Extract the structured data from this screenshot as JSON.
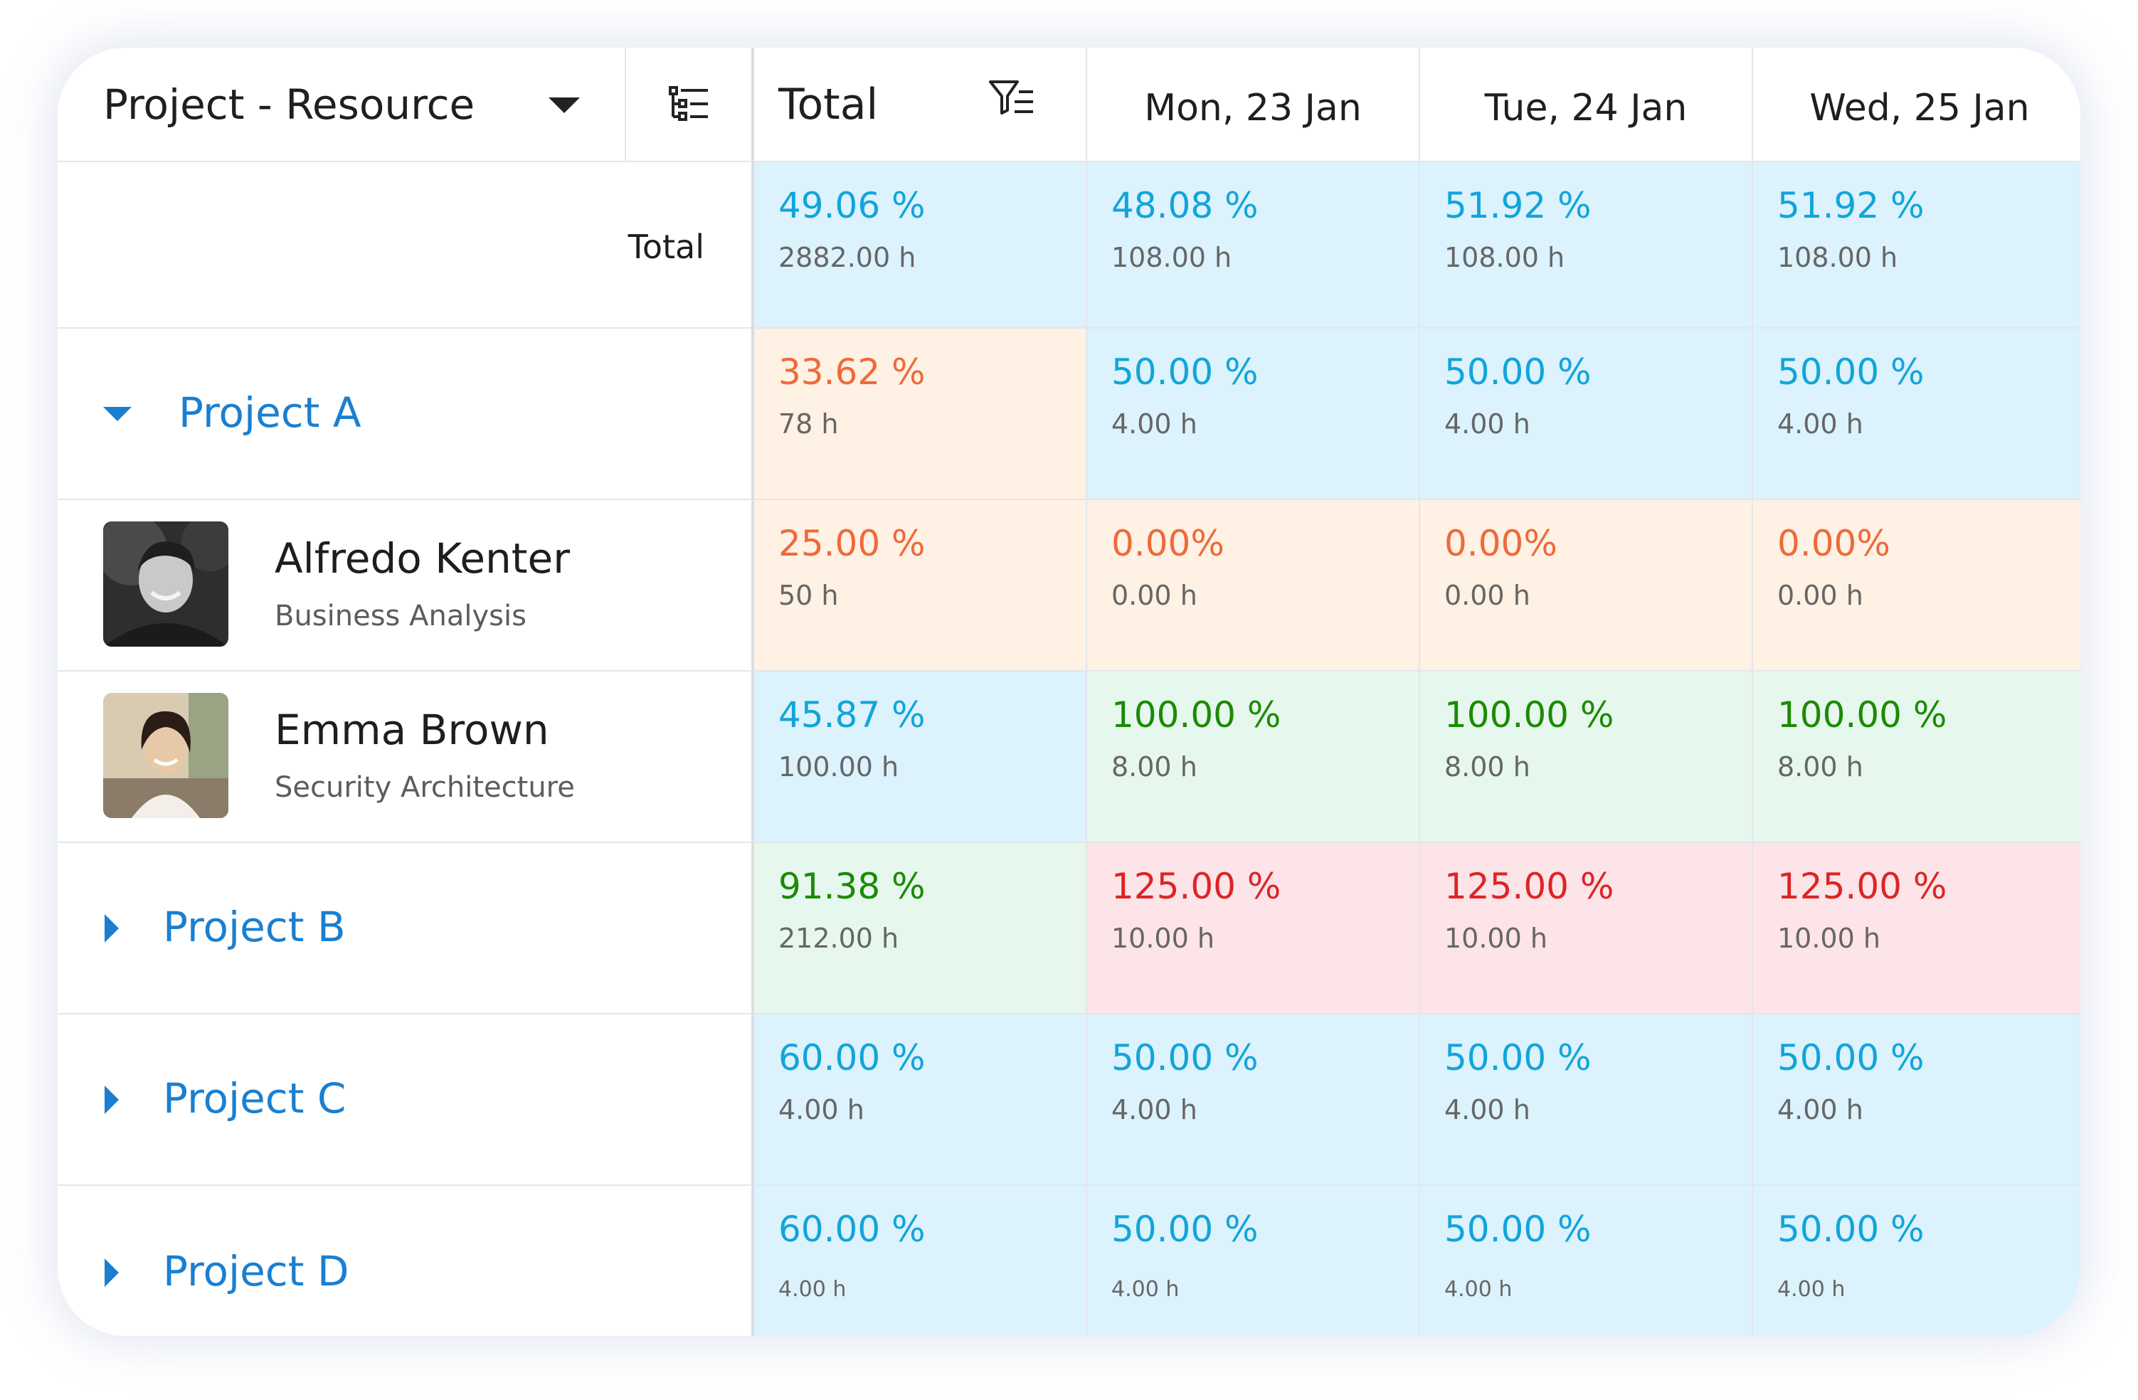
{
  "header": {
    "dropdown_label": "Project - Resource",
    "total_label": "Total",
    "days": [
      "Mon, 23 Jan",
      "Tue, 24 Jan",
      "Wed, 25 Jan"
    ]
  },
  "colors": {
    "blue_text": "#11a5d9",
    "orange_text": "#ee6a3b",
    "green_text": "#1c8a06",
    "red_text": "#dc2525",
    "project_link": "#1a7fd0",
    "blue_bg": "#dcf2fd",
    "orange_bg": "#fff1e4",
    "green_bg": "#e6f8ee",
    "red_bg": "#fde4e8"
  },
  "rows": [
    {
      "kind": "total",
      "label": "Total",
      "cells": [
        {
          "pct": "49.06 %",
          "hrs": "2882.00 h",
          "status": "blue"
        },
        {
          "pct": "48.08 %",
          "hrs": "108.00 h",
          "status": "blue"
        },
        {
          "pct": "51.92 %",
          "hrs": "108.00 h",
          "status": "blue"
        },
        {
          "pct": "51.92 %",
          "hrs": "108.00 h",
          "status": "blue"
        }
      ]
    },
    {
      "kind": "project",
      "label": "Project A",
      "expanded": true,
      "cells": [
        {
          "pct": "33.62 %",
          "hrs": "78 h",
          "status": "orange"
        },
        {
          "pct": "50.00 %",
          "hrs": "4.00 h",
          "status": "blue"
        },
        {
          "pct": "50.00 %",
          "hrs": "4.00 h",
          "status": "blue"
        },
        {
          "pct": "50.00 %",
          "hrs": "4.00 h",
          "status": "blue"
        }
      ]
    },
    {
      "kind": "person",
      "name": "Alfredo Kenter",
      "role": "Business Analysis",
      "avatar_icon": "person-photo-icon",
      "cells": [
        {
          "pct": "25.00 %",
          "hrs": "50 h",
          "status": "orange"
        },
        {
          "pct": "0.00%",
          "hrs": "0.00 h",
          "status": "orange"
        },
        {
          "pct": "0.00%",
          "hrs": "0.00 h",
          "status": "orange"
        },
        {
          "pct": "0.00%",
          "hrs": "0.00 h",
          "status": "orange"
        }
      ]
    },
    {
      "kind": "person",
      "name": "Emma Brown",
      "role": "Security Architecture",
      "avatar_icon": "person-photo-icon",
      "cells": [
        {
          "pct": "45.87 %",
          "hrs": "100.00 h",
          "status": "blue"
        },
        {
          "pct": "100.00 %",
          "hrs": "8.00 h",
          "status": "green"
        },
        {
          "pct": "100.00 %",
          "hrs": "8.00 h",
          "status": "green"
        },
        {
          "pct": "100.00 %",
          "hrs": "8.00 h",
          "status": "green"
        }
      ]
    },
    {
      "kind": "project",
      "label": "Project B",
      "expanded": false,
      "cells": [
        {
          "pct": "91.38 %",
          "hrs": "212.00 h",
          "status": "green"
        },
        {
          "pct": "125.00 %",
          "hrs": "10.00 h",
          "status": "red"
        },
        {
          "pct": "125.00 %",
          "hrs": "10.00 h",
          "status": "red"
        },
        {
          "pct": "125.00 %",
          "hrs": "10.00 h",
          "status": "red"
        }
      ]
    },
    {
      "kind": "project",
      "label": "Project C",
      "expanded": false,
      "cells": [
        {
          "pct": "60.00 %",
          "hrs": "4.00 h",
          "status": "blue"
        },
        {
          "pct": "50.00 %",
          "hrs": "4.00 h",
          "status": "blue"
        },
        {
          "pct": "50.00 %",
          "hrs": "4.00 h",
          "status": "blue"
        },
        {
          "pct": "50.00 %",
          "hrs": "4.00 h",
          "status": "blue"
        }
      ]
    },
    {
      "kind": "project",
      "label": "Project D",
      "expanded": false,
      "cells": [
        {
          "pct": "60.00 %",
          "hrs": "4.00 h",
          "status": "blue"
        },
        {
          "pct": "50.00 %",
          "hrs": "4.00 h",
          "status": "blue"
        },
        {
          "pct": "50.00 %",
          "hrs": "4.00 h",
          "status": "blue"
        },
        {
          "pct": "50.00 %",
          "hrs": "4.00 h",
          "status": "blue"
        }
      ]
    }
  ]
}
